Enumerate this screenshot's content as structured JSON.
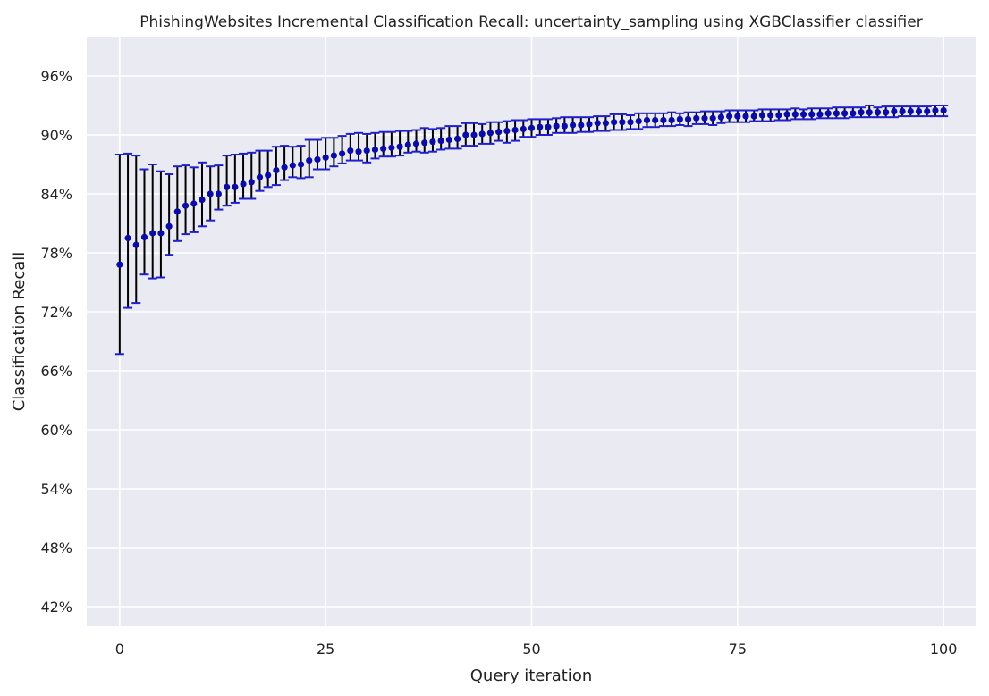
{
  "chart_data": {
    "type": "scatter",
    "title": "PhishingWebsites Incremental Classification Recall: uncertainty_sampling using XGBClassifier classifier",
    "xlabel": "Query iteration",
    "ylabel": "Classification Recall",
    "xlim": [
      -4,
      104
    ],
    "ylim": [
      0.4,
      1.0
    ],
    "x_ticks": [
      0,
      25,
      50,
      75,
      100
    ],
    "x_tick_labels": [
      "0",
      "25",
      "50",
      "75",
      "100"
    ],
    "y_ticks": [
      0.42,
      0.48,
      0.54,
      0.6,
      0.66,
      0.72,
      0.78,
      0.84,
      0.9,
      0.96
    ],
    "y_tick_labels": [
      "42%",
      "48%",
      "54%",
      "60%",
      "66%",
      "72%",
      "78%",
      "84%",
      "90%",
      "96%"
    ],
    "grid": true,
    "colors": {
      "background": "#EAEAF2",
      "grid": "#FFFFFF",
      "marker": "#0B0BA8",
      "error_bar": "#000000",
      "cap": "#1F1FD0"
    },
    "series": [
      {
        "x": [
          0,
          1,
          2,
          3,
          4,
          5,
          6,
          7,
          8,
          9,
          10,
          11,
          12,
          13,
          14,
          15,
          16,
          17,
          18,
          19,
          20,
          21,
          22,
          23,
          24,
          25,
          26,
          27,
          28,
          29,
          30,
          31,
          32,
          33,
          34,
          35,
          36,
          37,
          38,
          39,
          40,
          41,
          42,
          43,
          44,
          45,
          46,
          47,
          48,
          49,
          50,
          51,
          52,
          53,
          54,
          55,
          56,
          57,
          58,
          59,
          60,
          61,
          62,
          63,
          64,
          65,
          66,
          67,
          68,
          69,
          70,
          71,
          72,
          73,
          74,
          75,
          76,
          77,
          78,
          79,
          80,
          81,
          82,
          83,
          84,
          85,
          86,
          87,
          88,
          89,
          90,
          91,
          92,
          93,
          94,
          95,
          96,
          97,
          98,
          99,
          100
        ],
        "y": [
          0.768,
          0.795,
          0.788,
          0.796,
          0.8,
          0.8,
          0.807,
          0.822,
          0.828,
          0.83,
          0.834,
          0.84,
          0.84,
          0.847,
          0.847,
          0.85,
          0.852,
          0.857,
          0.859,
          0.864,
          0.867,
          0.869,
          0.87,
          0.874,
          0.875,
          0.877,
          0.879,
          0.881,
          0.884,
          0.883,
          0.884,
          0.885,
          0.886,
          0.887,
          0.888,
          0.89,
          0.891,
          0.892,
          0.893,
          0.894,
          0.895,
          0.896,
          0.9,
          0.9,
          0.901,
          0.902,
          0.903,
          0.904,
          0.905,
          0.906,
          0.907,
          0.908,
          0.908,
          0.909,
          0.909,
          0.91,
          0.91,
          0.911,
          0.912,
          0.912,
          0.913,
          0.913,
          0.913,
          0.914,
          0.915,
          0.915,
          0.915,
          0.915,
          0.916,
          0.916,
          0.917,
          0.917,
          0.917,
          0.918,
          0.919,
          0.919,
          0.919,
          0.919,
          0.92,
          0.92,
          0.92,
          0.921,
          0.921,
          0.921,
          0.921,
          0.921,
          0.922,
          0.922,
          0.922,
          0.922,
          0.923,
          0.923,
          0.923,
          0.923,
          0.924,
          0.924,
          0.924,
          0.924,
          0.924,
          0.925,
          0.925
        ],
        "lower": [
          0.677,
          0.724,
          0.729,
          0.758,
          0.754,
          0.755,
          0.778,
          0.792,
          0.799,
          0.801,
          0.807,
          0.813,
          0.824,
          0.828,
          0.831,
          0.835,
          0.835,
          0.843,
          0.847,
          0.849,
          0.854,
          0.857,
          0.856,
          0.857,
          0.865,
          0.865,
          0.868,
          0.871,
          0.874,
          0.874,
          0.872,
          0.876,
          0.878,
          0.878,
          0.879,
          0.882,
          0.883,
          0.882,
          0.883,
          0.885,
          0.886,
          0.886,
          0.889,
          0.889,
          0.891,
          0.891,
          0.894,
          0.892,
          0.894,
          0.898,
          0.898,
          0.9,
          0.9,
          0.902,
          0.902,
          0.902,
          0.903,
          0.903,
          0.904,
          0.904,
          0.905,
          0.905,
          0.906,
          0.906,
          0.908,
          0.908,
          0.909,
          0.909,
          0.91,
          0.909,
          0.911,
          0.911,
          0.91,
          0.912,
          0.913,
          0.913,
          0.913,
          0.914,
          0.914,
          0.914,
          0.915,
          0.915,
          0.916,
          0.916,
          0.916,
          0.917,
          0.917,
          0.917,
          0.917,
          0.918,
          0.918,
          0.918,
          0.918,
          0.918,
          0.918,
          0.919,
          0.919,
          0.919,
          0.919,
          0.919,
          0.919
        ],
        "upper": [
          0.88,
          0.881,
          0.879,
          0.865,
          0.87,
          0.863,
          0.86,
          0.868,
          0.869,
          0.867,
          0.872,
          0.868,
          0.869,
          0.879,
          0.88,
          0.881,
          0.882,
          0.884,
          0.884,
          0.888,
          0.889,
          0.888,
          0.889,
          0.895,
          0.895,
          0.897,
          0.897,
          0.899,
          0.901,
          0.902,
          0.901,
          0.902,
          0.903,
          0.903,
          0.904,
          0.904,
          0.905,
          0.907,
          0.906,
          0.907,
          0.909,
          0.909,
          0.912,
          0.912,
          0.911,
          0.913,
          0.913,
          0.914,
          0.915,
          0.915,
          0.916,
          0.916,
          0.916,
          0.917,
          0.918,
          0.918,
          0.918,
          0.918,
          0.919,
          0.919,
          0.921,
          0.921,
          0.92,
          0.922,
          0.922,
          0.922,
          0.922,
          0.923,
          0.922,
          0.923,
          0.923,
          0.924,
          0.924,
          0.924,
          0.925,
          0.925,
          0.925,
          0.925,
          0.926,
          0.926,
          0.926,
          0.926,
          0.927,
          0.926,
          0.927,
          0.927,
          0.927,
          0.928,
          0.928,
          0.928,
          0.928,
          0.93,
          0.928,
          0.929,
          0.929,
          0.929,
          0.929,
          0.929,
          0.929,
          0.93,
          0.93
        ]
      }
    ]
  }
}
